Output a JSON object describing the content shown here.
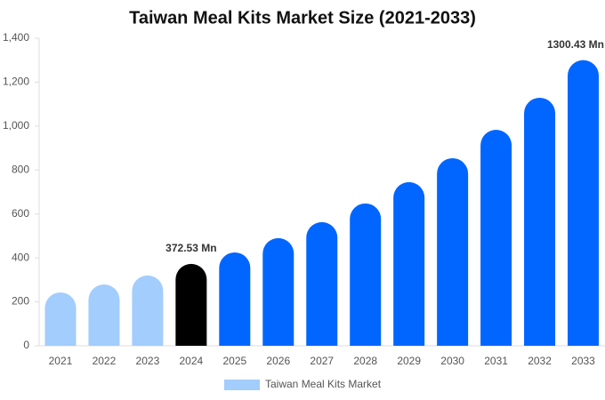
{
  "chart_data": {
    "type": "bar",
    "title": "Taiwan Meal Kits Market Size (2021-2033)",
    "categories": [
      "2021",
      "2022",
      "2023",
      "2024",
      "2025",
      "2026",
      "2027",
      "2028",
      "2029",
      "2030",
      "2031",
      "2032",
      "2033"
    ],
    "series": [
      {
        "name": "Taiwan Meal Kits Market",
        "color": "#a2cdfd",
        "colors": [
          "#a2cdfd",
          "#a2cdfd",
          "#a2cdfd",
          "#000000",
          "#0066ff",
          "#0066ff",
          "#0066ff",
          "#0066ff",
          "#0066ff",
          "#0066ff",
          "#0066ff",
          "#0066ff",
          "#0066ff"
        ],
        "values": [
          243,
          279,
          320,
          372.53,
          425,
          490,
          563,
          648,
          745,
          854,
          983,
          1129,
          1300.43
        ],
        "value_labels": [
          null,
          null,
          null,
          "372.53 Mn",
          null,
          null,
          null,
          null,
          null,
          null,
          null,
          null,
          "1300.43 Mn"
        ]
      }
    ],
    "ylim": [
      0,
      1400
    ],
    "yticks": [
      0,
      200,
      400,
      600,
      800,
      {
        "value": 1000,
        "label": "1,000"
      },
      {
        "value": 1200,
        "label": "1,200"
      },
      {
        "value": 1400,
        "label": "1,400"
      }
    ],
    "grid": false,
    "legend": "bottom"
  }
}
